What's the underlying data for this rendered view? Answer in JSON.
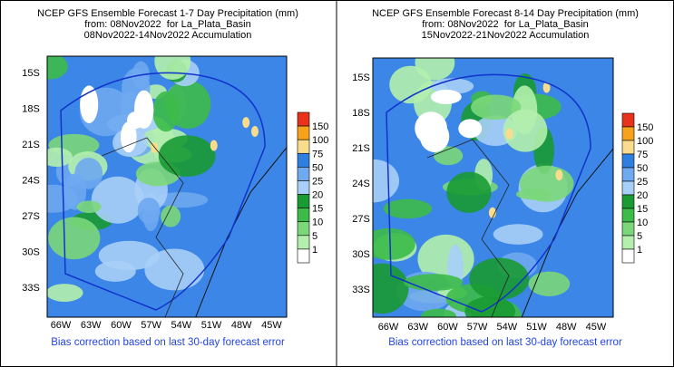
{
  "panels": [
    {
      "title": [
        "NCEP GFS Ensemble Forecast 1-7 Day Precipitation (mm)",
        "from: 08Nov2022  for La_Plata_Basin",
        "08Nov2022-14Nov2022 Accumulation"
      ],
      "lat_labels": [
        "15S",
        "18S",
        "21S",
        "24S",
        "27S",
        "30S",
        "33S"
      ],
      "lon_labels": [
        "66W",
        "63W",
        "60W",
        "57W",
        "54W",
        "51W",
        "48W",
        "45W"
      ],
      "colorbar": {
        "levels": [
          150,
          100,
          75,
          50,
          25,
          20,
          15,
          10,
          5,
          1
        ],
        "colors": [
          "#e8321c",
          "#f7a21b",
          "#f9dc8c",
          "#2f7fe0",
          "#6fa9ef",
          "#a8cff7",
          "#1a9a33",
          "#3dbb48",
          "#7bd77a",
          "#b4efad",
          "#ffffff"
        ]
      },
      "footer": "Bias correction based on last 30-day forecast error"
    },
    {
      "title": [
        "NCEP GFS Ensemble Forecast 8-14 Day Precipitation (mm)",
        "from: 08Nov2022  for La_Plata_Basin",
        "15Nov2022-21Nov2022 Accumulation"
      ],
      "lat_labels": [
        "15S",
        "18S",
        "21S",
        "24S",
        "27S",
        "30S",
        "33S"
      ],
      "lon_labels": [
        "66W",
        "63W",
        "60W",
        "57W",
        "54W",
        "51W",
        "48W",
        "45W"
      ],
      "colorbar": {
        "levels": [
          150,
          100,
          75,
          50,
          25,
          20,
          15,
          10,
          5,
          1
        ],
        "colors": [
          "#e8321c",
          "#f7a21b",
          "#f9dc8c",
          "#2f7fe0",
          "#6fa9ef",
          "#a8cff7",
          "#1a9a33",
          "#3dbb48",
          "#7bd77a",
          "#b4efad",
          "#ffffff"
        ]
      },
      "footer": "Bias correction based on last 30-day forecast error"
    }
  ]
}
